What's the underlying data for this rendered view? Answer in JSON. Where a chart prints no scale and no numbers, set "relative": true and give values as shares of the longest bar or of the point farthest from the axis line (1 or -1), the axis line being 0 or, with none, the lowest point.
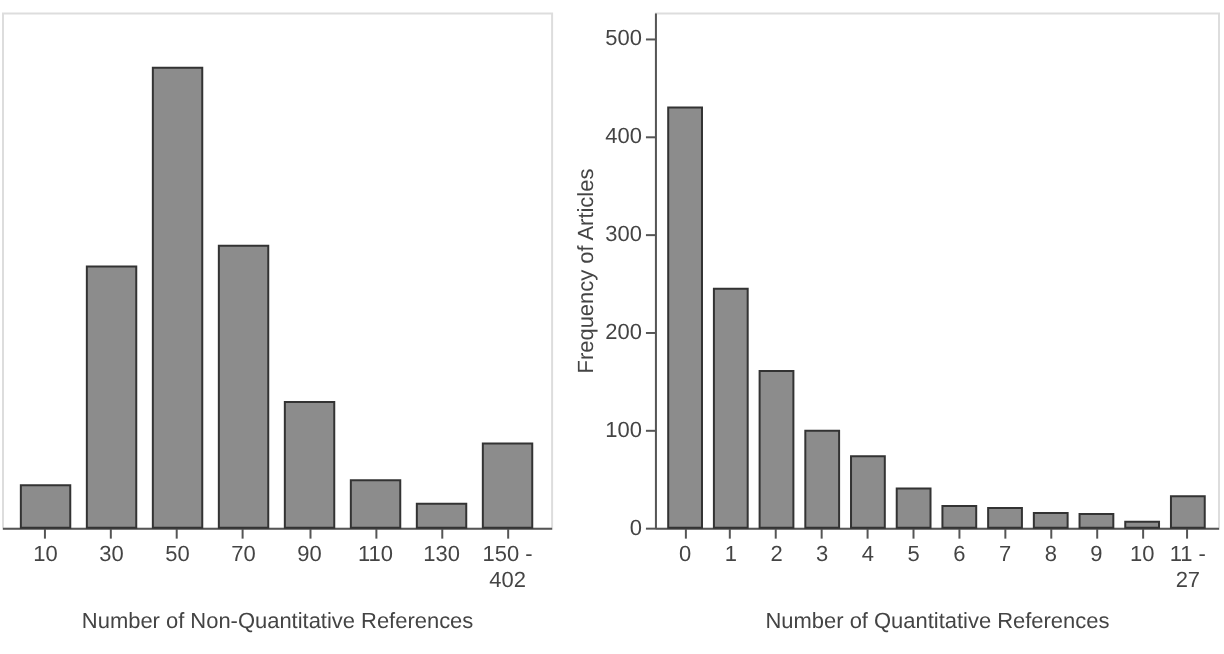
{
  "chart_data": [
    {
      "type": "bar",
      "xlabel": "Number of Non-Quantitative References",
      "categories": [
        "10",
        "30",
        "50",
        "70",
        "90",
        "110",
        "130",
        "150 - 402"
      ],
      "values": [
        0.092,
        0.568,
        1,
        0.613,
        0.273,
        0.103,
        0.052,
        0.183
      ],
      "color": "#8c8c8c",
      "relative": true
    },
    {
      "type": "bar",
      "xlabel": "Number of Quantitative References",
      "ylabel": "Frequency of Articles",
      "categories": [
        "0",
        "1",
        "2",
        "3",
        "4",
        "5",
        "6",
        "7",
        "8",
        "9",
        "10",
        "11 - 27"
      ],
      "values": [
        429,
        244,
        160,
        99,
        73,
        40,
        22,
        20,
        15,
        14,
        6,
        32
      ],
      "color": "#8c8c8c",
      "ylim": [
        0,
        526
      ],
      "yticks": [
        0,
        100,
        200,
        300,
        400,
        500
      ]
    }
  ]
}
